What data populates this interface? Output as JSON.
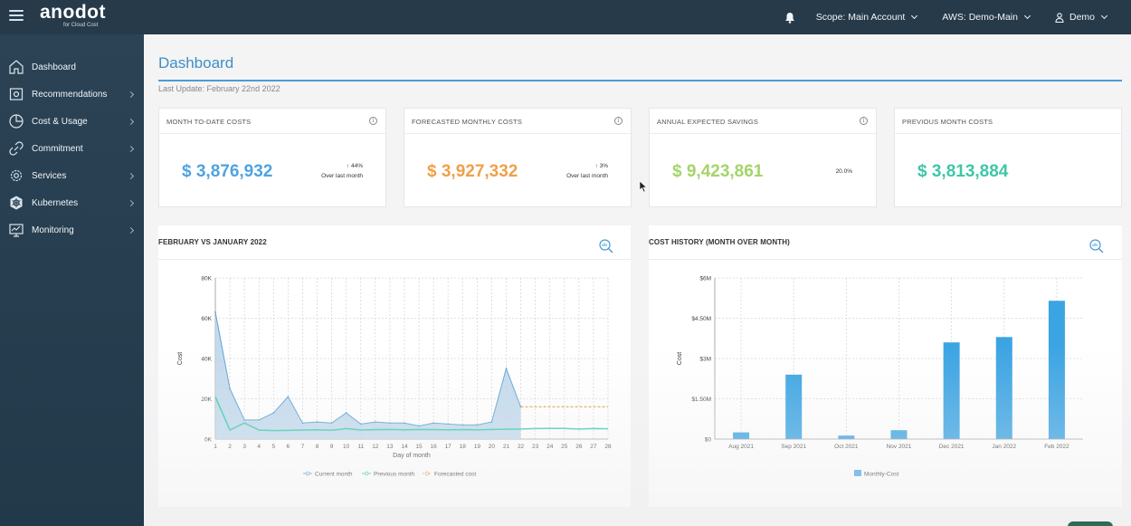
{
  "topbar": {
    "logo_text": "anodot",
    "logo_sub": "for Cloud Cost",
    "scope_label": "Scope: Main Account",
    "account_label": "AWS: Demo-Main",
    "user_label": "Demo"
  },
  "sidebar": {
    "items": [
      {
        "label": "Dashboard",
        "icon": "home-icon"
      },
      {
        "label": "Recommendations",
        "icon": "recommendations-icon"
      },
      {
        "label": "Cost & Usage",
        "icon": "pie-chart-icon"
      },
      {
        "label": "Commitment",
        "icon": "link-icon"
      },
      {
        "label": "Services",
        "icon": "gear-icon"
      },
      {
        "label": "Kubernetes",
        "icon": "kubernetes-icon"
      },
      {
        "label": "Monitoring",
        "icon": "monitor-icon"
      }
    ]
  },
  "page": {
    "title": "Dashboard",
    "last_update": "Last Update: February 22nd 2022"
  },
  "cards": [
    {
      "title": "MONTH TO-DATE COSTS",
      "value": "$ 3,876,932",
      "delta": "44%",
      "delta_sub": "Over last month",
      "color": "#4fa3e0"
    },
    {
      "title": "FORECASTED MONTHLY COSTS",
      "value": "$ 3,927,332",
      "delta": "3%",
      "delta_sub": "Over last month",
      "color": "#f0a04b"
    },
    {
      "title": "ANNUAL EXPECTED SAVINGS",
      "value": "$ 9,423,861",
      "delta": "20.0%",
      "color": "#a5d46a"
    },
    {
      "title": "PREVIOUS MONTH COSTS",
      "value": "$ 3,813,884",
      "color": "#3fc6a8"
    }
  ],
  "colors": {
    "accent": "#3d8fc5",
    "current_month": "#5b9fd1",
    "current_fill": "#b9d4ea",
    "previous_month": "#3ccbaa",
    "forecast": "#e8a24a",
    "bar": "#3ba4e3"
  },
  "chart_data": [
    {
      "type": "area",
      "title": "FEBRUARY  VS JANUARY 2022",
      "xlabel": "Day of month",
      "ylabel": "Cost",
      "x": [
        1,
        2,
        3,
        4,
        5,
        6,
        7,
        8,
        9,
        10,
        11,
        12,
        13,
        14,
        15,
        16,
        17,
        18,
        19,
        20,
        21,
        22,
        23,
        24,
        25,
        26,
        27,
        28
      ],
      "ylim": [
        0,
        80000
      ],
      "yticks": [
        0,
        20000,
        40000,
        60000,
        80000
      ],
      "ytick_labels": [
        "0K",
        "20K",
        "40K",
        "60K",
        "80K"
      ],
      "series": [
        {
          "name": "Current month",
          "x": [
            1,
            2,
            3,
            4,
            5,
            6,
            7,
            8,
            9,
            10,
            11,
            12,
            13,
            14,
            15,
            16,
            17,
            18,
            19,
            20,
            21,
            22
          ],
          "values": [
            63000,
            25000,
            9500,
            9500,
            13000,
            21000,
            8000,
            8500,
            8000,
            13000,
            7500,
            8500,
            8000,
            8000,
            6500,
            8000,
            7500,
            7000,
            7000,
            8500,
            35000,
            16000
          ]
        },
        {
          "name": "Previous month",
          "x": [
            1,
            2,
            3,
            4,
            5,
            6,
            7,
            8,
            9,
            10,
            11,
            12,
            13,
            14,
            15,
            16,
            17,
            18,
            19,
            20,
            21,
            22,
            23,
            24,
            25,
            26,
            27,
            28
          ],
          "values": [
            21000,
            4500,
            8000,
            4500,
            4200,
            4300,
            4500,
            4600,
            4400,
            5200,
            4500,
            4700,
            4800,
            4600,
            4800,
            4700,
            4600,
            4700,
            4600,
            4800,
            4900,
            5000,
            5200,
            5300,
            5300,
            5000,
            5200,
            5100
          ]
        },
        {
          "name": "Forecasted cost",
          "x": [
            22,
            23,
            24,
            25,
            26,
            27,
            28
          ],
          "values": [
            16000,
            16000,
            16000,
            16000,
            16000,
            16000,
            16000
          ]
        }
      ]
    },
    {
      "type": "bar",
      "title": "COST HISTORY (MONTH OVER MONTH)",
      "ylabel": "Cost",
      "categories": [
        "Aug 2021",
        "Sep 2021",
        "Oct 2021",
        "Nov 2021",
        "Dec 2021",
        "Jan 2022",
        "Feb 2022"
      ],
      "ylim": [
        0,
        6000000
      ],
      "yticks": [
        0,
        1500000,
        3000000,
        4500000,
        6000000
      ],
      "ytick_labels": [
        "$0",
        "$1.50M",
        "$3M",
        "$4.50M",
        "$6M"
      ],
      "series": [
        {
          "name": "Monthly-Cost",
          "values": [
            250000,
            2400000,
            130000,
            330000,
            3600000,
            3800000,
            5150000
          ]
        }
      ]
    }
  ]
}
